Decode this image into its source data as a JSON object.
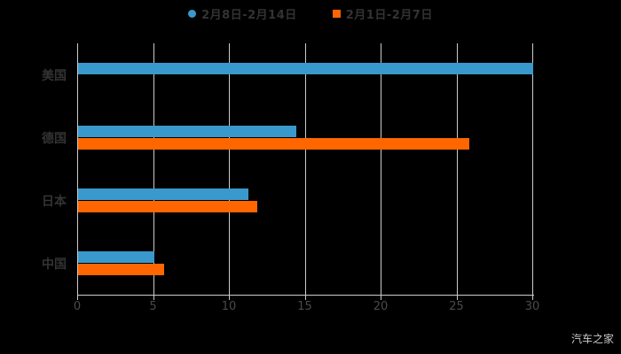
{
  "legend": {
    "items": [
      {
        "label": "2月8日-2月14日",
        "marker": "circle",
        "color": "#3A99CC"
      },
      {
        "label": "2月1日-2月7日",
        "marker": "square",
        "color": "#FF6600"
      }
    ]
  },
  "watermark": "汽车之家",
  "colors": {
    "background": "#000000",
    "grid": "#CCCCCC",
    "tick_text": "#4A4A4A",
    "category_text": "#333333",
    "watermark_text": "#C9C9C9"
  },
  "chart_data": {
    "type": "bar",
    "orientation": "horizontal",
    "title": "",
    "xlabel": "",
    "ylabel": "",
    "categories": [
      "美国",
      "德国",
      "日本",
      "中国"
    ],
    "series": [
      {
        "name": "2月8日-2月14日",
        "color": "#3A99CC",
        "values": [
          30,
          14.4,
          11.2,
          5
        ]
      },
      {
        "name": "2月1日-2月7日",
        "color": "#FF6600",
        "values": [
          null,
          25.8,
          11.8,
          5.7
        ]
      }
    ],
    "xlim": [
      0,
      30
    ],
    "xticks": [
      0,
      5,
      10,
      15,
      20,
      25,
      30
    ],
    "grid": "vertical-only",
    "legend_position": "top-center"
  }
}
